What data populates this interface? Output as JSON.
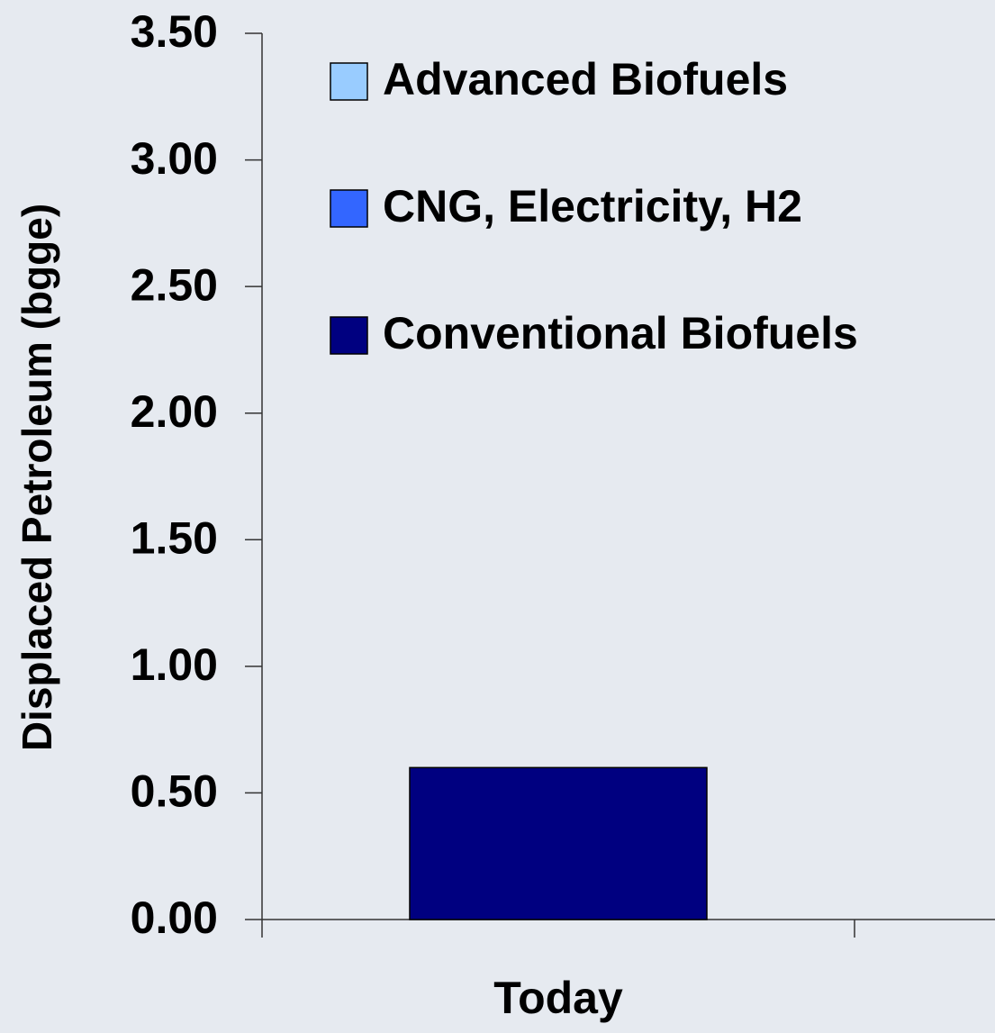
{
  "chart_data": {
    "type": "stacked-bar",
    "y_label": "Displaced Petroleum (bgge)",
    "categories": [
      "Today"
    ],
    "series": [
      {
        "name": "Conventional Biofuels",
        "color": "#000080",
        "values": [
          0.6
        ]
      },
      {
        "name": "CNG, Electricity, H2",
        "color": "#3366ff",
        "values": [
          0
        ]
      },
      {
        "name": "Advanced Biofuels",
        "color": "#99ccff",
        "values": [
          0
        ]
      }
    ],
    "ylim": [
      0,
      3.5
    ],
    "yticks": [
      {
        "value": 0,
        "label": "0.00"
      },
      {
        "value": 0.5,
        "label": "0.50"
      },
      {
        "value": 1,
        "label": "1.00"
      },
      {
        "value": 1.5,
        "label": "1.50"
      },
      {
        "value": 2,
        "label": "2.00"
      },
      {
        "value": 2.5,
        "label": "2.50"
      },
      {
        "value": 3,
        "label": "3.00"
      },
      {
        "value": 3.5,
        "label": "3.50"
      }
    ],
    "legend": "upper-left"
  }
}
